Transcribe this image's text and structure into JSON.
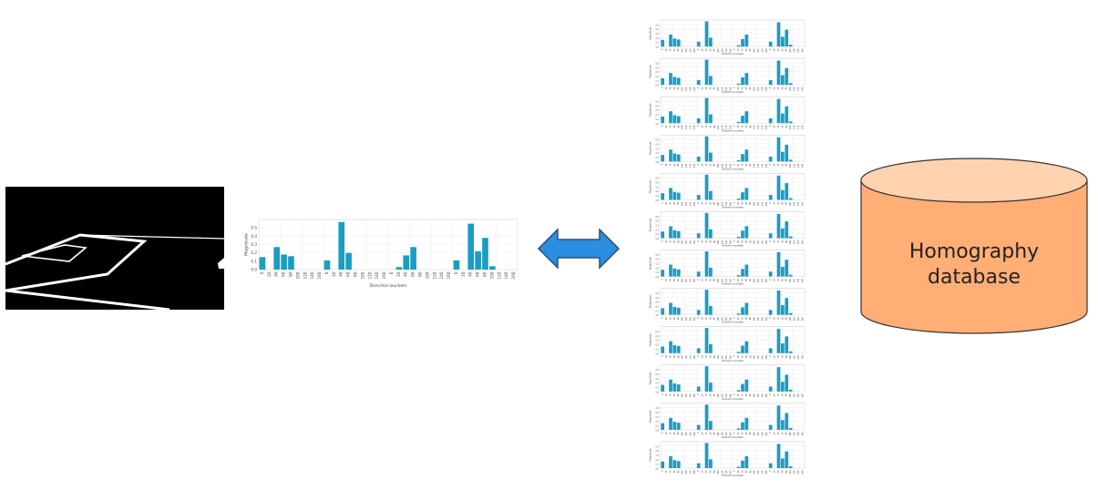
{
  "database": {
    "line1": "Homography",
    "line2": "database",
    "fill": "#ffae75",
    "top_fill": "#ffd2b0",
    "stroke": "#333333"
  },
  "arrow": {
    "fill": "#2b8ee0",
    "stroke": "#2a4f7a"
  },
  "chart_data": {
    "type": "bar",
    "bar_color": "#1a9dc2",
    "ylabel": "Magnitude",
    "xlabel": "Direction buckets",
    "ylim": [
      0,
      0.6
    ],
    "y_ticks": [
      "0.0",
      "0.1",
      "0.2",
      "0.3",
      "0.4",
      "0.5"
    ],
    "categories": [
      "0",
      "20",
      "40",
      "60",
      "80",
      "100",
      "120",
      "140",
      "160",
      "0",
      "20",
      "40",
      "60",
      "80",
      "100",
      "120",
      "140",
      "160",
      "0",
      "20",
      "40",
      "60",
      "80",
      "100",
      "120",
      "140",
      "160",
      "0",
      "20",
      "40",
      "60",
      "80",
      "100",
      "120",
      "140",
      "160"
    ],
    "values": [
      0.15,
      0,
      0.27,
      0.18,
      0.16,
      0,
      0,
      0,
      0,
      0.11,
      0,
      0.57,
      0.2,
      0,
      0,
      0,
      0,
      0,
      0,
      0.03,
      0.17,
      0.27,
      0,
      0,
      0,
      0,
      0,
      0.11,
      0,
      0.55,
      0.22,
      0.38,
      0.04,
      0,
      0,
      0
    ],
    "stack_count": 12
  }
}
